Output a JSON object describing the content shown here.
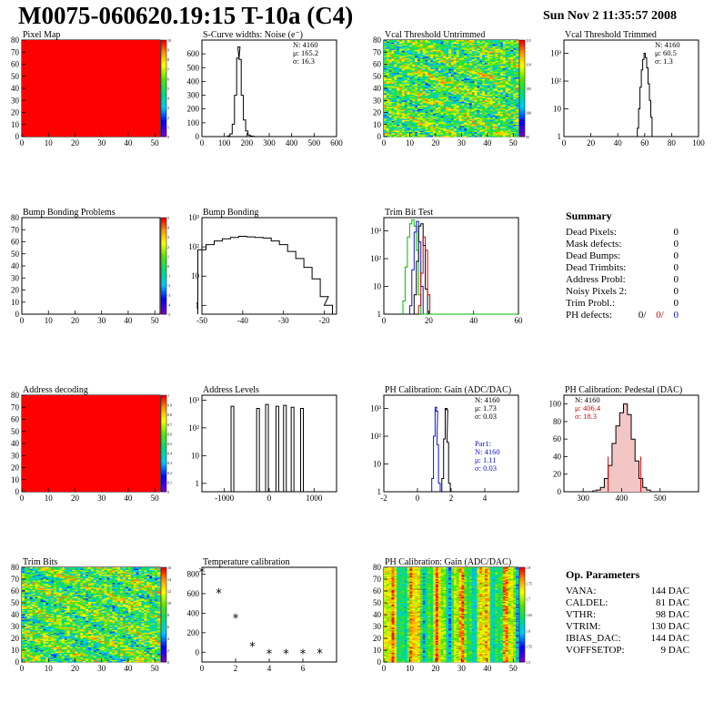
{
  "header": {
    "title": "M0075-060620.19:15 T-10a (C4)",
    "date": "Sun Nov  2 11:35:57 2008"
  },
  "panels": [
    {
      "id": "pixel-map",
      "title": "Pixel Map",
      "kind": "map",
      "fill": "uniform-red",
      "xticks": [
        0,
        10,
        20,
        30,
        40,
        50
      ],
      "yticks": [
        0,
        10,
        20,
        30,
        40,
        50,
        60,
        70,
        80
      ],
      "palette_labels": [
        "0",
        "1",
        "2",
        "3",
        "4",
        "5",
        "6",
        "7",
        "8",
        "9",
        "10"
      ]
    },
    {
      "id": "scurve-noise",
      "title": "S-Curve widths: Noise (e⁻)",
      "kind": "hist",
      "scale": "linear",
      "xticks": [
        0,
        100,
        200,
        300,
        400,
        500,
        600
      ],
      "yticks": [
        0,
        100,
        200,
        300,
        400,
        500,
        600
      ],
      "stats": [
        "N: 4160",
        "μ: 165.2",
        "σ: 16.3"
      ]
    },
    {
      "id": "vcal-untrimmed",
      "title": "Vcal Threshold Untrimmed",
      "kind": "map",
      "fill": "noise-bands",
      "xticks": [
        0,
        10,
        20,
        30,
        40,
        50
      ],
      "yticks": [
        0,
        10,
        20,
        30,
        40,
        50,
        60,
        70,
        80
      ],
      "palette_labels": [
        "95",
        "100",
        "105",
        "110",
        "115"
      ]
    },
    {
      "id": "vcal-trimmed",
      "title": "Vcal Threshold Trimmed",
      "kind": "hist",
      "scale": "log",
      "xticks": [
        0,
        20,
        40,
        60,
        80,
        100
      ],
      "yticks": [
        "1",
        "10",
        "10²",
        "10³"
      ],
      "stats": [
        "N: 4160",
        "μ: 60.5",
        "σ:  1.3"
      ]
    },
    {
      "id": "bump-problems",
      "title": "Bump Bonding Problems",
      "kind": "map",
      "fill": "empty",
      "xticks": [
        0,
        10,
        20,
        30,
        40,
        50
      ],
      "yticks": [
        0,
        10,
        20,
        30,
        40,
        50,
        60,
        70,
        80
      ],
      "palette_labels": [
        "-5",
        "-4",
        "-3",
        "-2",
        "-1",
        "0",
        "1",
        "2",
        "3",
        "4",
        "5"
      ]
    },
    {
      "id": "bump-bonding",
      "title": "Bump Bonding",
      "kind": "hist",
      "scale": "log",
      "xticks": [
        -50,
        -40,
        -30,
        -20
      ],
      "yticks": [
        "1",
        "10",
        "10²",
        "10³"
      ],
      "stats": []
    },
    {
      "id": "trim-bit-test",
      "title": "Trim Bit Test",
      "kind": "hist",
      "scale": "log",
      "xticks": [
        0,
        20,
        40,
        60
      ],
      "yticks": [
        "1",
        "10",
        "10²",
        "10³"
      ],
      "stats": []
    },
    {
      "id": "address-decoding",
      "title": "Address decoding",
      "kind": "map",
      "fill": "uniform-red",
      "xticks": [
        0,
        10,
        20,
        30,
        40,
        50
      ],
      "yticks": [
        0,
        10,
        20,
        30,
        40,
        50,
        60,
        70,
        80
      ],
      "palette_labels": [
        "0",
        "0.1",
        "0.2",
        "0.3",
        "0.4",
        "0.5",
        "0.6",
        "0.7",
        "0.8",
        "0.9",
        "1"
      ]
    },
    {
      "id": "address-levels",
      "title": "Address Levels",
      "kind": "hist",
      "scale": "log",
      "xticks": [
        -1000,
        0,
        1000
      ],
      "yticks": [
        "1",
        "10",
        "10²",
        "10³"
      ],
      "stats": []
    },
    {
      "id": "ph-gain-hist",
      "title": "PH Calibration: Gain (ADC/DAC)",
      "kind": "hist",
      "scale": "log",
      "xticks": [
        -2,
        0,
        2,
        4
      ],
      "yticks": [
        "1",
        "10",
        "10²",
        "10³"
      ],
      "stats": [
        "N: 4160",
        "μ: 1.73",
        "σ: 0.03"
      ],
      "stats2": [
        "Par1:",
        "N: 4160",
        "μ: 1.11",
        "σ: 0.03"
      ]
    },
    {
      "id": "ph-pedestal",
      "title": "PH Calibration: Pedestal (DAC)",
      "kind": "hist",
      "scale": "linear",
      "xticks": [
        300,
        400,
        500
      ],
      "yticks": [
        0,
        20,
        40,
        60,
        80,
        100
      ],
      "stats": [
        "N: 4160",
        "μ: 406.4",
        "σ: 18.3"
      ]
    },
    {
      "id": "trim-bits",
      "title": "Trim Bits",
      "kind": "map",
      "fill": "noise-bands",
      "xticks": [
        0,
        10,
        20,
        30,
        40,
        50
      ],
      "yticks": [
        0,
        10,
        20,
        30,
        40,
        50,
        60,
        70,
        80
      ],
      "palette_labels": [
        "0",
        "2",
        "4",
        "6",
        "8",
        "10",
        "12",
        "14",
        "16"
      ]
    },
    {
      "id": "temp-calibration",
      "title": "Temperature calibration",
      "kind": "graph",
      "scale": "linear",
      "xticks": [
        0,
        2,
        4,
        6
      ],
      "yticks": [
        0,
        200,
        400,
        600,
        800
      ],
      "stats": []
    },
    {
      "id": "ph-gain-map",
      "title": "PH Calibration: Gain (ADC/DAC)",
      "kind": "map",
      "fill": "gain-columns",
      "xticks": [
        0,
        10,
        20,
        30,
        40,
        50
      ],
      "yticks": [
        0,
        10,
        20,
        30,
        40,
        50,
        60,
        70,
        80
      ],
      "palette_labels": [
        "1.5",
        "1.55",
        "1.6",
        "1.65",
        "1.7",
        "1.75",
        "1.8"
      ]
    }
  ],
  "summary": {
    "title": "Summary",
    "rows": [
      {
        "label": "Dead Pixels:",
        "value": "0"
      },
      {
        "label": "Mask defects:",
        "value": "0"
      },
      {
        "label": "Dead Bumps:",
        "value": "0"
      },
      {
        "label": "Dead Trimbits:",
        "value": "0"
      },
      {
        "label": "Address Probl:",
        "value": "0"
      },
      {
        "label": "Noisy Pixels 2:",
        "value": "0"
      },
      {
        "label": "Trim Probl.:",
        "value": "0"
      }
    ],
    "ph_defects_label": "PH defects:",
    "ph_defects_values": [
      {
        "text": "0/",
        "color": "#000000"
      },
      {
        "text": "0/",
        "color": "#d40000"
      },
      {
        "text": "0",
        "color": "#1010d0"
      }
    ]
  },
  "op_parameters": {
    "title": "Op. Parameters",
    "rows": [
      {
        "label": "VANA:",
        "value": "144 DAC"
      },
      {
        "label": "CALDEL:",
        "value": "81 DAC"
      },
      {
        "label": "VTHR:",
        "value": "98 DAC"
      },
      {
        "label": "VTRIM:",
        "value": "130 DAC"
      },
      {
        "label": "IBIAS_DAC:",
        "value": "144 DAC"
      },
      {
        "label": "VOFFSETOP:",
        "value": "9 DAC"
      }
    ]
  },
  "chart_data": [
    {
      "type": "heatmap",
      "panel": "pixel-map",
      "xlim": [
        0,
        52
      ],
      "ylim": [
        0,
        80
      ],
      "value": 10
    },
    {
      "type": "histogram",
      "panel": "scurve-noise",
      "xlim": [
        0,
        600
      ],
      "ylim": [
        0,
        700
      ],
      "x": [
        120,
        130,
        140,
        150,
        160,
        165,
        170,
        180,
        190,
        200,
        210,
        220,
        230
      ],
      "values": [
        5,
        20,
        90,
        300,
        570,
        650,
        560,
        300,
        120,
        40,
        12,
        4,
        1
      ]
    },
    {
      "type": "heatmap",
      "panel": "vcal-untrimmed",
      "xlim": [
        0,
        52
      ],
      "ylim": [
        0,
        80
      ],
      "zlim": [
        95,
        115
      ]
    },
    {
      "type": "histogram",
      "panel": "vcal-trimmed",
      "scale": "log",
      "xlim": [
        0,
        100
      ],
      "ylim": [
        1,
        3000
      ],
      "x": [
        55,
        56,
        57,
        58,
        59,
        60,
        61,
        62,
        63,
        64,
        65,
        66
      ],
      "values": [
        2,
        10,
        60,
        250,
        600,
        1000,
        700,
        300,
        80,
        20,
        5,
        1
      ]
    },
    {
      "type": "heatmap",
      "panel": "bump-problems",
      "xlim": [
        0,
        52
      ],
      "ylim": [
        0,
        80
      ],
      "zlim": [
        -5,
        5
      ]
    },
    {
      "type": "histogram",
      "panel": "bump-bonding",
      "scale": "log",
      "xlim": [
        -50,
        -17
      ],
      "ylim": [
        0.5,
        1000
      ],
      "x": [
        -50,
        -48,
        -46,
        -44,
        -42,
        -40,
        -38,
        -36,
        -34,
        -32,
        -30,
        -28,
        -26,
        -24,
        -22,
        -20,
        -19
      ],
      "values": [
        80,
        120,
        160,
        190,
        210,
        230,
        220,
        210,
        200,
        160,
        120,
        70,
        40,
        20,
        8,
        2,
        1
      ]
    },
    {
      "type": "histogram",
      "panel": "trim-bit-test",
      "scale": "log",
      "xlim": [
        0,
        60
      ],
      "ylim": [
        1,
        3000
      ],
      "series": [
        {
          "color": "#00bb00",
          "x": [
            9,
            10,
            11,
            12,
            13,
            14,
            15,
            16
          ],
          "values": [
            3,
            50,
            600,
            1800,
            2500,
            1500,
            200,
            5
          ]
        },
        {
          "color": "#1010d0",
          "x": [
            12,
            13,
            14,
            15,
            16,
            17
          ],
          "values": [
            2,
            40,
            900,
            2200,
            400,
            10
          ]
        },
        {
          "color": "#000000",
          "x": [
            14,
            15,
            16,
            17,
            18,
            19
          ],
          "values": [
            5,
            80,
            1500,
            1800,
            300,
            8
          ]
        },
        {
          "color": "#d40000",
          "x": [
            16,
            17,
            18,
            19,
            20
          ],
          "values": [
            2,
            30,
            600,
            200,
            5
          ]
        }
      ]
    },
    {
      "type": "heatmap",
      "panel": "address-decoding",
      "xlim": [
        0,
        52
      ],
      "ylim": [
        0,
        80
      ],
      "value": 1
    },
    {
      "type": "histogram",
      "panel": "address-levels",
      "scale": "log",
      "xlim": [
        -1500,
        1500
      ],
      "ylim": [
        0.5,
        1500
      ],
      "peaks": [
        {
          "x": -820,
          "value": 600
        },
        {
          "x": -250,
          "value": 500
        },
        {
          "x": -50,
          "value": 700
        },
        {
          "x": 180,
          "value": 600
        },
        {
          "x": 350,
          "value": 650
        },
        {
          "x": 520,
          "value": 550
        },
        {
          "x": 730,
          "value": 500
        }
      ]
    },
    {
      "type": "histogram",
      "panel": "ph-gain-hist",
      "scale": "log",
      "xlim": [
        -2,
        6
      ],
      "ylim": [
        1,
        3000
      ],
      "series": [
        {
          "color": "#000000",
          "x": [
            1.5,
            1.6,
            1.7,
            1.75,
            1.8,
            1.9
          ],
          "values": [
            3,
            80,
            1000,
            900,
            60,
            2
          ]
        },
        {
          "color": "#1010d0",
          "x": [
            0.9,
            1.0,
            1.1,
            1.15,
            1.2,
            1.3
          ],
          "values": [
            3,
            100,
            1100,
            800,
            50,
            2
          ]
        }
      ]
    },
    {
      "type": "histogram",
      "panel": "ph-pedestal",
      "xlim": [
        250,
        600
      ],
      "ylim": [
        0,
        110
      ],
      "x": [
        330,
        340,
        350,
        360,
        370,
        380,
        390,
        400,
        410,
        420,
        430,
        440,
        450,
        460,
        470
      ],
      "values": [
        1,
        2,
        5,
        15,
        30,
        55,
        75,
        90,
        100,
        88,
        60,
        35,
        15,
        5,
        2
      ],
      "fit_color": "#d40000",
      "fit_range": [
        365,
        450
      ]
    },
    {
      "type": "heatmap",
      "panel": "trim-bits",
      "xlim": [
        0,
        52
      ],
      "ylim": [
        0,
        80
      ],
      "zlim": [
        0,
        16
      ]
    },
    {
      "type": "scatter",
      "panel": "temp-calibration",
      "xlim": [
        0,
        8
      ],
      "ylim": [
        -100,
        870
      ],
      "x": [
        0,
        1,
        2,
        3,
        4,
        5,
        6,
        7
      ],
      "values": [
        815,
        600,
        345,
        55,
        -20,
        -20,
        -20,
        -15
      ]
    },
    {
      "type": "heatmap",
      "panel": "ph-gain-map",
      "xlim": [
        0,
        52
      ],
      "ylim": [
        0,
        80
      ],
      "zlim": [
        1.5,
        1.8
      ]
    }
  ]
}
